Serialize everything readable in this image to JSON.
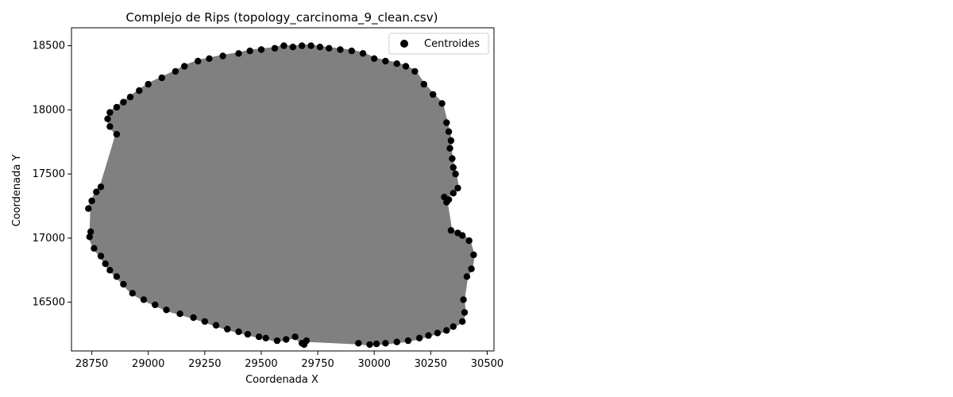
{
  "chart_data": {
    "type": "scatter",
    "title": "Complejo de Rips (topology_carcinoma_9_clean.csv)",
    "xlabel": "Coordenada X",
    "ylabel": "Coordenada Y",
    "xlim": [
      28660,
      30530
    ],
    "ylim": [
      16120,
      18640
    ],
    "xticks": [
      28750,
      29000,
      29250,
      29500,
      29750,
      30000,
      30250,
      30500
    ],
    "yticks": [
      16500,
      17000,
      17500,
      18000,
      18500
    ],
    "grid": false,
    "legend": {
      "position": "top-right",
      "entries": [
        "Centroides"
      ]
    },
    "colors": {
      "fill": "#808080",
      "points": "#000000"
    },
    "series": [
      {
        "name": "Centroides",
        "x": [
          28735,
          28750,
          28745,
          28740,
          28760,
          28790,
          28810,
          28830,
          28860,
          28890,
          28930,
          28980,
          29030,
          29080,
          29140,
          29200,
          29250,
          29300,
          29350,
          29400,
          29440,
          29490,
          29520,
          29570,
          29610,
          29650,
          29680,
          29690,
          29700,
          29930,
          29980,
          30010,
          30050,
          30100,
          30150,
          30200,
          30240,
          30280,
          30320,
          30350,
          30390,
          30400,
          30395,
          30410,
          30430,
          30440,
          30420,
          30390,
          30370,
          30340,
          30320,
          30330,
          30310,
          30350,
          30370,
          30360,
          30350,
          30345,
          30335,
          30340,
          30330,
          30320,
          30300,
          30260,
          30220,
          30180,
          30140,
          30100,
          30050,
          30000,
          29950,
          29900,
          29850,
          29800,
          29760,
          29720,
          29680,
          29640,
          29600,
          29560,
          29500,
          29450,
          29400,
          29330,
          29270,
          29220,
          29160,
          29120,
          29060,
          29000,
          28960,
          28920,
          28890,
          28860,
          28830,
          28820,
          28830,
          28860,
          28790,
          28770
        ],
        "y": [
          17230,
          17290,
          17050,
          17010,
          16920,
          16860,
          16800,
          16750,
          16700,
          16640,
          16570,
          16520,
          16480,
          16440,
          16410,
          16380,
          16350,
          16320,
          16290,
          16270,
          16250,
          16230,
          16220,
          16200,
          16210,
          16230,
          16180,
          16170,
          16200,
          16180,
          16170,
          16175,
          16180,
          16190,
          16200,
          16220,
          16240,
          16260,
          16280,
          16310,
          16350,
          16420,
          16520,
          16700,
          16760,
          16870,
          16980,
          17020,
          17040,
          17060,
          17280,
          17300,
          17320,
          17350,
          17390,
          17500,
          17550,
          17620,
          17700,
          17760,
          17830,
          17900,
          18050,
          18120,
          18200,
          18300,
          18340,
          18360,
          18380,
          18400,
          18440,
          18460,
          18470,
          18480,
          18490,
          18500,
          18500,
          18490,
          18500,
          18480,
          18470,
          18460,
          18440,
          18420,
          18400,
          18380,
          18340,
          18300,
          18250,
          18200,
          18150,
          18100,
          18060,
          18020,
          17980,
          17930,
          17870,
          17810,
          17400,
          17360
        ]
      }
    ]
  }
}
